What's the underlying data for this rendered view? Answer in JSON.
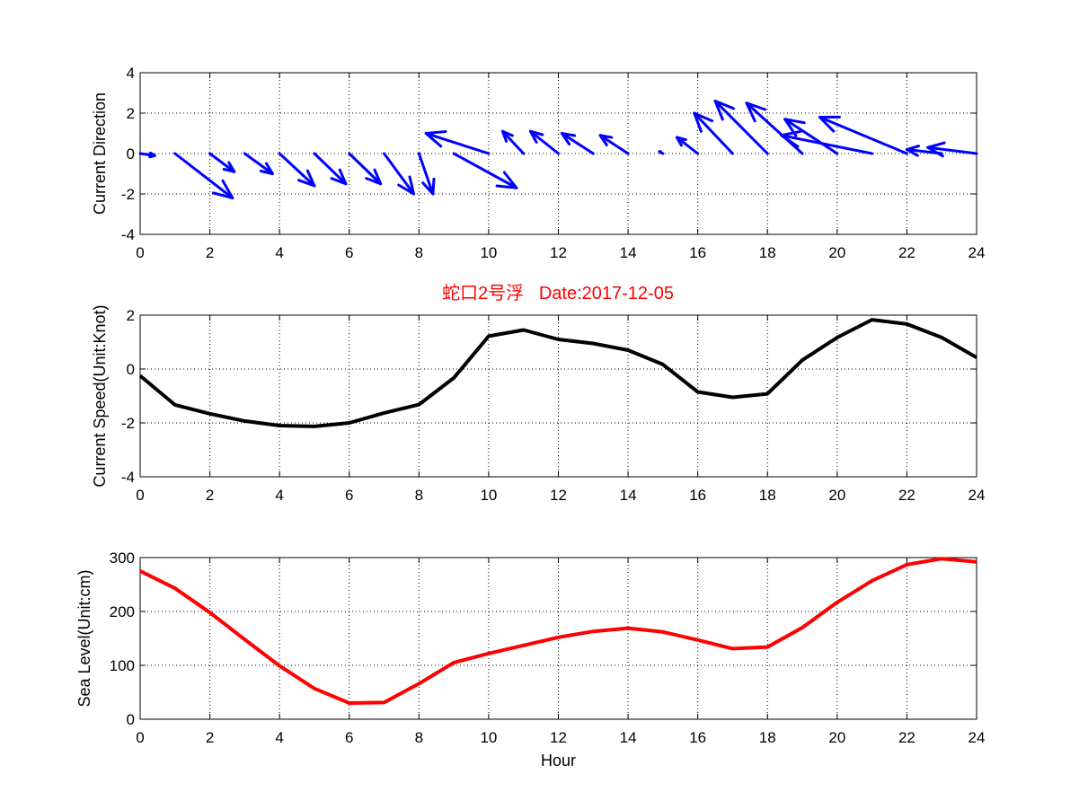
{
  "figure_title": "蛇口2号浮   Date:2017-12-05",
  "colors": {
    "title": "#ff0000",
    "arrows": "#0000ff",
    "speed": "#000000",
    "sea_level": "#ff0000"
  },
  "chart_data": [
    {
      "type": "quiver",
      "title": "",
      "xlabel": "",
      "ylabel": "Current Direction",
      "xlim": [
        0,
        24
      ],
      "ylim": [
        -4,
        4
      ],
      "grid": true,
      "xticks": [
        0,
        2,
        4,
        6,
        8,
        10,
        12,
        14,
        16,
        18,
        20,
        22,
        24
      ],
      "yticks": [
        -4,
        -2,
        0,
        2,
        4
      ],
      "series": [
        {
          "x": [
            0,
            1,
            2,
            3,
            4,
            5,
            6,
            7,
            8,
            9,
            10,
            11,
            12,
            13,
            14,
            15,
            16,
            17,
            18,
            19,
            20,
            21,
            22,
            23,
            24
          ],
          "u": [
            0.42,
            1.65,
            0.7,
            0.8,
            1.0,
            0.9,
            0.9,
            0.85,
            0.4,
            1.8,
            -1.8,
            -0.6,
            -0.8,
            -0.9,
            -0.8,
            -0.1,
            -0.6,
            -1.1,
            -1.5,
            -1.6,
            -1.5,
            -2.6,
            -2.5,
            -1.0,
            -1.4
          ],
          "v": [
            -0.1,
            -2.2,
            -0.9,
            -1.0,
            -1.6,
            -1.5,
            -1.5,
            -2.0,
            -2.0,
            -1.7,
            1.0,
            1.1,
            1.1,
            1.0,
            0.9,
            0.1,
            0.8,
            2.0,
            2.6,
            2.5,
            1.7,
            0.9,
            1.8,
            0.2,
            0.3
          ]
        }
      ]
    },
    {
      "type": "line",
      "title": "",
      "xlabel": "",
      "ylabel": "Current Speed(Unit:Knot)",
      "xlim": [
        0,
        24
      ],
      "ylim": [
        -4,
        2
      ],
      "grid": true,
      "xticks": [
        0,
        2,
        4,
        6,
        8,
        10,
        12,
        14,
        16,
        18,
        20,
        22,
        24
      ],
      "yticks": [
        -4,
        -2,
        0,
        2
      ],
      "series": [
        {
          "x": [
            0,
            1,
            2,
            3,
            4,
            5,
            6,
            7,
            8,
            9,
            10,
            11,
            12,
            13,
            14,
            15,
            16,
            17,
            18,
            19,
            20,
            21,
            22,
            23,
            24
          ],
          "values": [
            -0.25,
            -1.33,
            -1.66,
            -1.93,
            -2.1,
            -2.13,
            -2.0,
            -1.63,
            -1.32,
            -0.33,
            1.22,
            1.45,
            1.1,
            0.95,
            0.7,
            0.17,
            -0.85,
            -1.05,
            -0.92,
            0.33,
            1.17,
            1.83,
            1.67,
            1.17,
            0.43
          ]
        }
      ]
    },
    {
      "type": "line",
      "title": "",
      "xlabel": "Hour",
      "ylabel": "Sea Level(Unit:cm)",
      "xlim": [
        0,
        24
      ],
      "ylim": [
        0,
        300
      ],
      "grid": true,
      "xticks": [
        0,
        2,
        4,
        6,
        8,
        10,
        12,
        14,
        16,
        18,
        20,
        22,
        24
      ],
      "yticks": [
        0,
        100,
        200,
        300
      ],
      "series": [
        {
          "x": [
            0,
            1,
            2,
            3,
            4,
            5,
            6,
            7,
            8,
            9,
            10,
            11,
            12,
            13,
            14,
            15,
            16,
            17,
            18,
            19,
            20,
            21,
            22,
            23,
            24
          ],
          "values": [
            275,
            243,
            198,
            148,
            99,
            57,
            30,
            31,
            66,
            105,
            122,
            137,
            152,
            163,
            169,
            162,
            147,
            131,
            134,
            170,
            217,
            257,
            287,
            298,
            292
          ]
        }
      ]
    }
  ]
}
